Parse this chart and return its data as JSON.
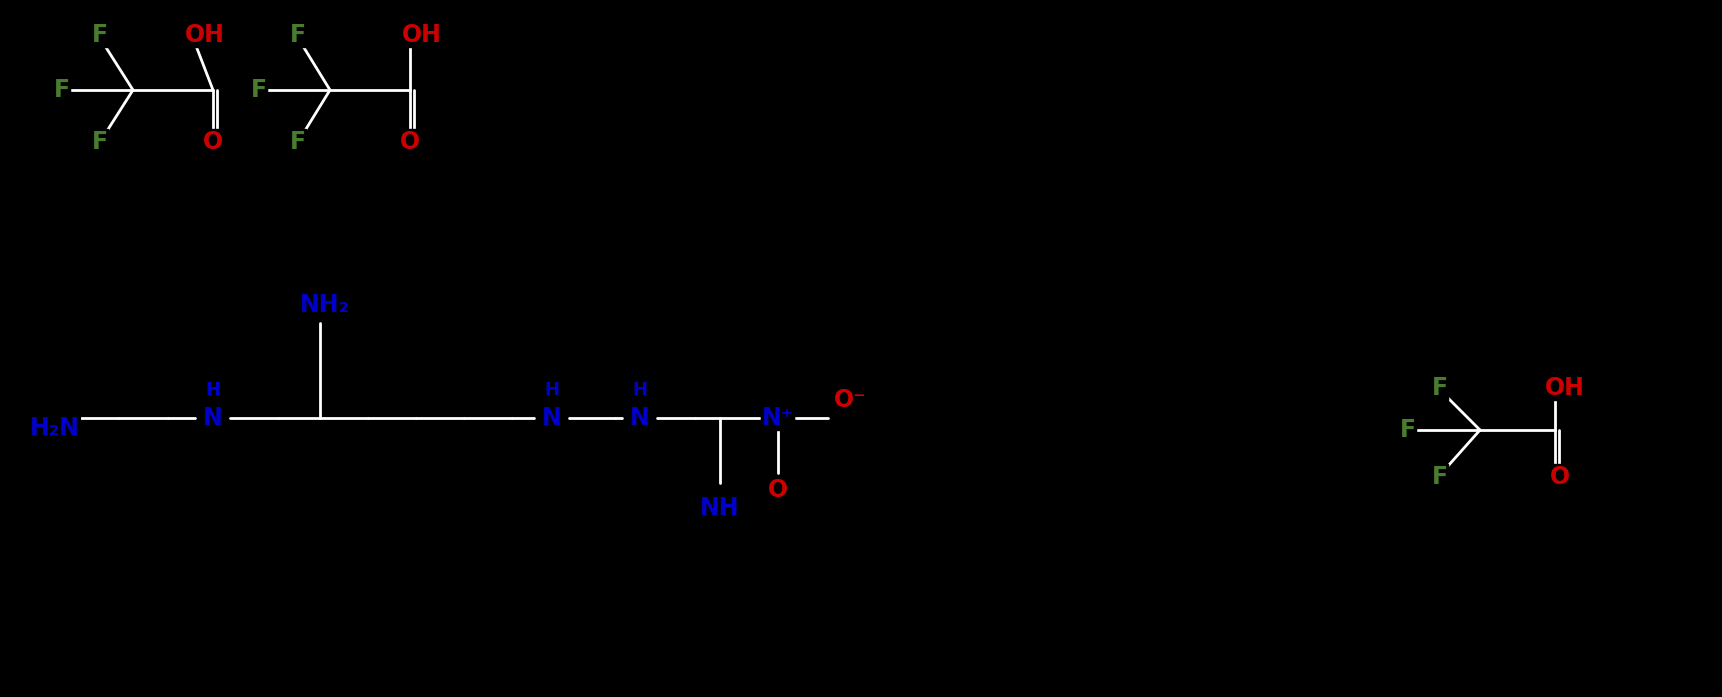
{
  "background": "#000000",
  "figsize": [
    17.22,
    6.97
  ],
  "dpi": 100,
  "bond_color": "#ffffff",
  "bond_lw": 2.0,
  "colors": {
    "F": "#4a7c2f",
    "O": "#cc0000",
    "N": "#0000cc",
    "C": "#ffffff"
  },
  "xlim": [
    0,
    1722
  ],
  "ylim": [
    0,
    697
  ]
}
